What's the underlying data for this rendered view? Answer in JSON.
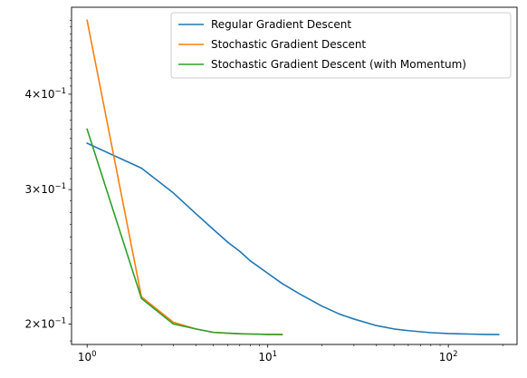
{
  "chart_data": {
    "type": "line",
    "title": "",
    "xlabel": "",
    "ylabel": "",
    "xscale": "log",
    "yscale": "log",
    "xlim": [
      0.82,
      240
    ],
    "ylim": [
      0.188,
      0.52
    ],
    "grid": false,
    "legend_position": "top-right",
    "x_ticks": [
      {
        "value": 1,
        "label": "10",
        "exp": "0"
      },
      {
        "value": 10,
        "label": "10",
        "exp": "1"
      },
      {
        "value": 100,
        "label": "10",
        "exp": "2"
      }
    ],
    "y_ticks": [
      {
        "value": 0.2,
        "label": "2×10",
        "exp": "−1"
      },
      {
        "value": 0.3,
        "label": "3×10",
        "exp": "−1"
      },
      {
        "value": 0.4,
        "label": "4×10",
        "exp": "−1"
      }
    ],
    "series": [
      {
        "name": "Regular Gradient Descent",
        "color": "#1f77b4",
        "x": [
          1,
          2,
          3,
          4,
          5,
          6,
          7,
          8,
          10,
          12,
          15,
          20,
          25,
          30,
          40,
          50,
          60,
          80,
          100,
          130,
          160,
          190
        ],
        "y": [
          0.345,
          0.32,
          0.297,
          0.279,
          0.266,
          0.256,
          0.249,
          0.242,
          0.233,
          0.226,
          0.219,
          0.211,
          0.206,
          0.203,
          0.199,
          0.197,
          0.196,
          0.1948,
          0.1943,
          0.194,
          0.1938,
          0.1937
        ]
      },
      {
        "name": "Stochastic Gradient Descent",
        "color": "#ff7f0e",
        "x": [
          1,
          2,
          3,
          4,
          5,
          6,
          7,
          8,
          9,
          10,
          11,
          12
        ],
        "y": [
          0.5,
          0.217,
          0.201,
          0.197,
          0.195,
          0.1945,
          0.1942,
          0.194,
          0.1939,
          0.1938,
          0.1938,
          0.1937
        ]
      },
      {
        "name": "Stochastic Gradient Descent (with Momentum)",
        "color": "#2ca02c",
        "x": [
          1,
          2,
          3,
          4,
          5,
          6,
          7,
          8,
          9,
          10,
          11,
          12
        ],
        "y": [
          0.36,
          0.216,
          0.2,
          0.197,
          0.195,
          0.1945,
          0.1942,
          0.194,
          0.1939,
          0.1938,
          0.1938,
          0.1937
        ]
      }
    ]
  }
}
